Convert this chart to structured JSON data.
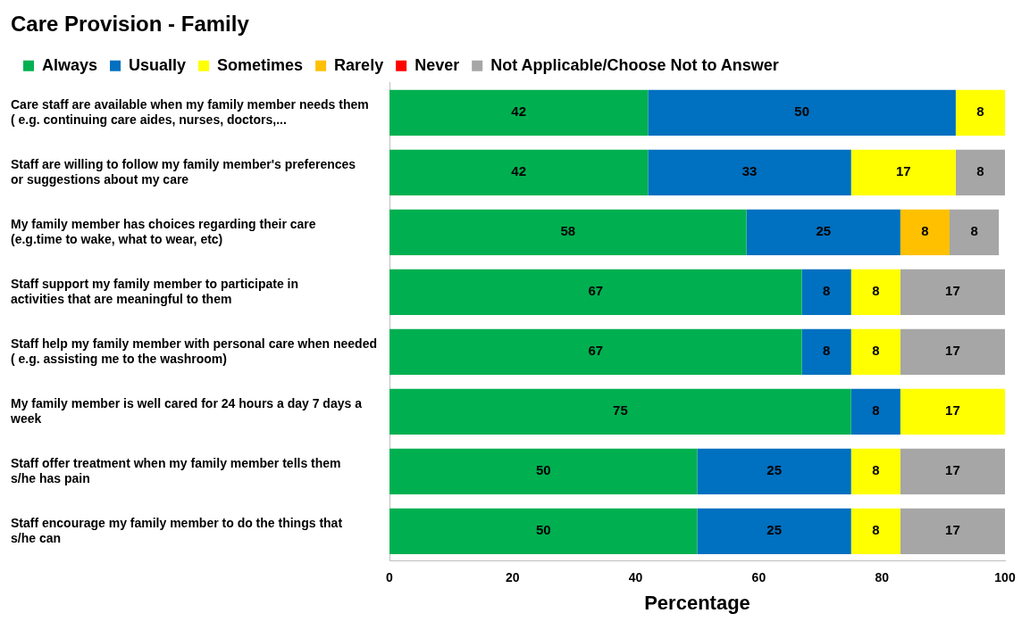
{
  "chart_data": {
    "type": "bar",
    "orientation": "horizontal",
    "stacked": true,
    "title": "Care Provision - Family",
    "xlabel": "Percentage",
    "categories": [
      "Care staff are available when my family member needs them ( e.g. continuing care aides, nurses, doctors,...",
      "Staff are willing to follow my family member's preferences or suggestions about my care",
      "My family member has choices regarding their care (e.g.time to wake, what to wear, etc)",
      "Staff support my family member to participate in activities that are meaningful to them",
      "Staff help my family member with personal care when needed ( e.g. assisting me to the washroom)",
      "My family member is well cared for 24 hours a day 7 days a week",
      "Staff offer treatment when my family member tells them s/he has pain",
      "Staff encourage my family member to do the things that s/he can"
    ],
    "series": [
      {
        "name": "Always",
        "color": "#00b050",
        "values": [
          42,
          42,
          58,
          67,
          67,
          75,
          50,
          50
        ]
      },
      {
        "name": "Usually",
        "color": "#0070c0",
        "values": [
          50,
          33,
          25,
          8,
          8,
          8,
          25,
          25
        ]
      },
      {
        "name": "Sometimes",
        "color": "#ffff00",
        "values": [
          8,
          17,
          null,
          8,
          8,
          17,
          8,
          8
        ]
      },
      {
        "name": "Rarely",
        "color": "#ffc000",
        "values": [
          null,
          null,
          8,
          null,
          null,
          null,
          null,
          null
        ]
      },
      {
        "name": "Never",
        "color": "#ff0000",
        "values": [
          null,
          null,
          null,
          null,
          null,
          null,
          null,
          null
        ]
      },
      {
        "name": "Not Applicable/Choose Not to Answer",
        "color": "#a6a6a6",
        "values": [
          null,
          8,
          8,
          17,
          17,
          null,
          17,
          17
        ]
      }
    ],
    "xlim": [
      0,
      100
    ],
    "xticks": [
      0,
      20,
      40,
      60,
      80,
      100
    ],
    "grid": false,
    "legend": "top",
    "data_labels": true
  }
}
